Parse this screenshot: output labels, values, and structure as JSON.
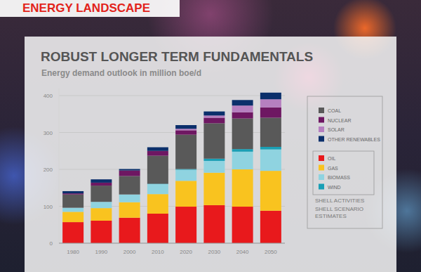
{
  "header": "ENERGY LANDSCAPE",
  "chart_data": {
    "type": "bar",
    "stacked": true,
    "title": "ROBUST LONGER TERM FUNDAMENTALS",
    "subtitle": "Energy demand outlook in million boe/d",
    "categories": [
      "1980",
      "1990",
      "2000",
      "2010",
      "2020",
      "2030",
      "2040",
      "2050"
    ],
    "series": [
      {
        "name": "OIL",
        "color": "#e8191c",
        "values": [
          57,
          61,
          69,
          80,
          99,
          103,
          99,
          88
        ]
      },
      {
        "name": "GAS",
        "color": "#f9c31f",
        "values": [
          28,
          34,
          42,
          53,
          70,
          88,
          101,
          108
        ]
      },
      {
        "name": "BIOMASS",
        "color": "#8fd3e0",
        "values": [
          11,
          17,
          21,
          27,
          30,
          32,
          48,
          58
        ]
      },
      {
        "name": "WIND",
        "color": "#1a9fb5",
        "values": [
          0,
          0,
          0,
          1,
          2,
          6,
          7,
          7
        ]
      },
      {
        "name": "COAL",
        "color": "#595959",
        "values": [
          36,
          44,
          50,
          76,
          93,
          96,
          83,
          79
        ]
      },
      {
        "name": "NUCLEAR",
        "color": "#6e1762",
        "values": [
          3,
          8,
          15,
          13,
          12,
          15,
          17,
          28
        ]
      },
      {
        "name": "SOLAR",
        "color": "#b67fc0",
        "values": [
          0,
          0,
          0,
          0,
          4,
          6,
          18,
          22
        ]
      },
      {
        "name": "OTHER RENEWABLES",
        "color": "#0b2f6b",
        "values": [
          6,
          9,
          4,
          10,
          10,
          11,
          15,
          18
        ]
      }
    ],
    "ylim": [
      0,
      420
    ],
    "yticks": [
      0,
      100,
      200,
      300,
      400
    ],
    "grid": true,
    "legend": "right",
    "annotations": [
      "SHELL ACTIVITIES",
      "SHELL SCENARIO ESTIMATES"
    ]
  }
}
